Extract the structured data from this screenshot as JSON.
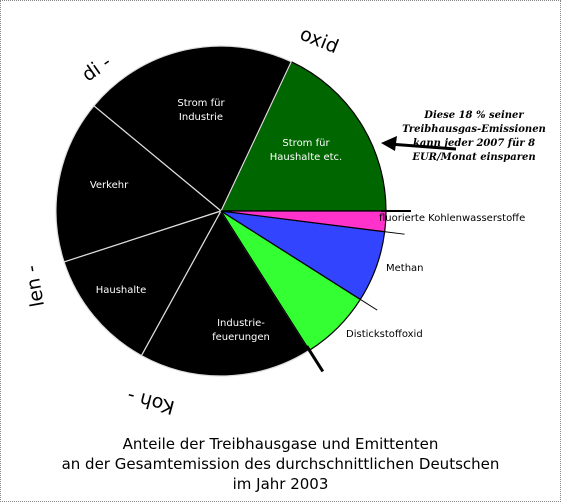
{
  "chart_data": {
    "type": "pie",
    "title": [
      "Anteile der Treibhausgase und Emittenten",
      "an der Gesamtemission des durchschnittlichen Deutschen",
      "im Jahr 2003"
    ],
    "categories": [
      "Strom für Haushalte etc.",
      "Strom für Industrie",
      "Verkehr",
      "Haushalte",
      "Industrie-feuerungen",
      "Distickstoffoxid",
      "Methan",
      "fluorierte Kohlenwasserstoffe"
    ],
    "values": [
      18,
      21,
      16,
      12,
      17,
      7,
      7,
      2
    ],
    "colors": [
      "#006600",
      "#000000",
      "#000000",
      "#000000",
      "#000000",
      "#33ff33",
      "#3344ff",
      "#ff33cc"
    ],
    "group_labels": [
      "oxid",
      "di -",
      "len -",
      "Koh -"
    ],
    "annotation": "Diese 18 % seiner Treibhausgas-Emissionen kann jeder 2007 für 8 EUR/Monat einsparen"
  }
}
